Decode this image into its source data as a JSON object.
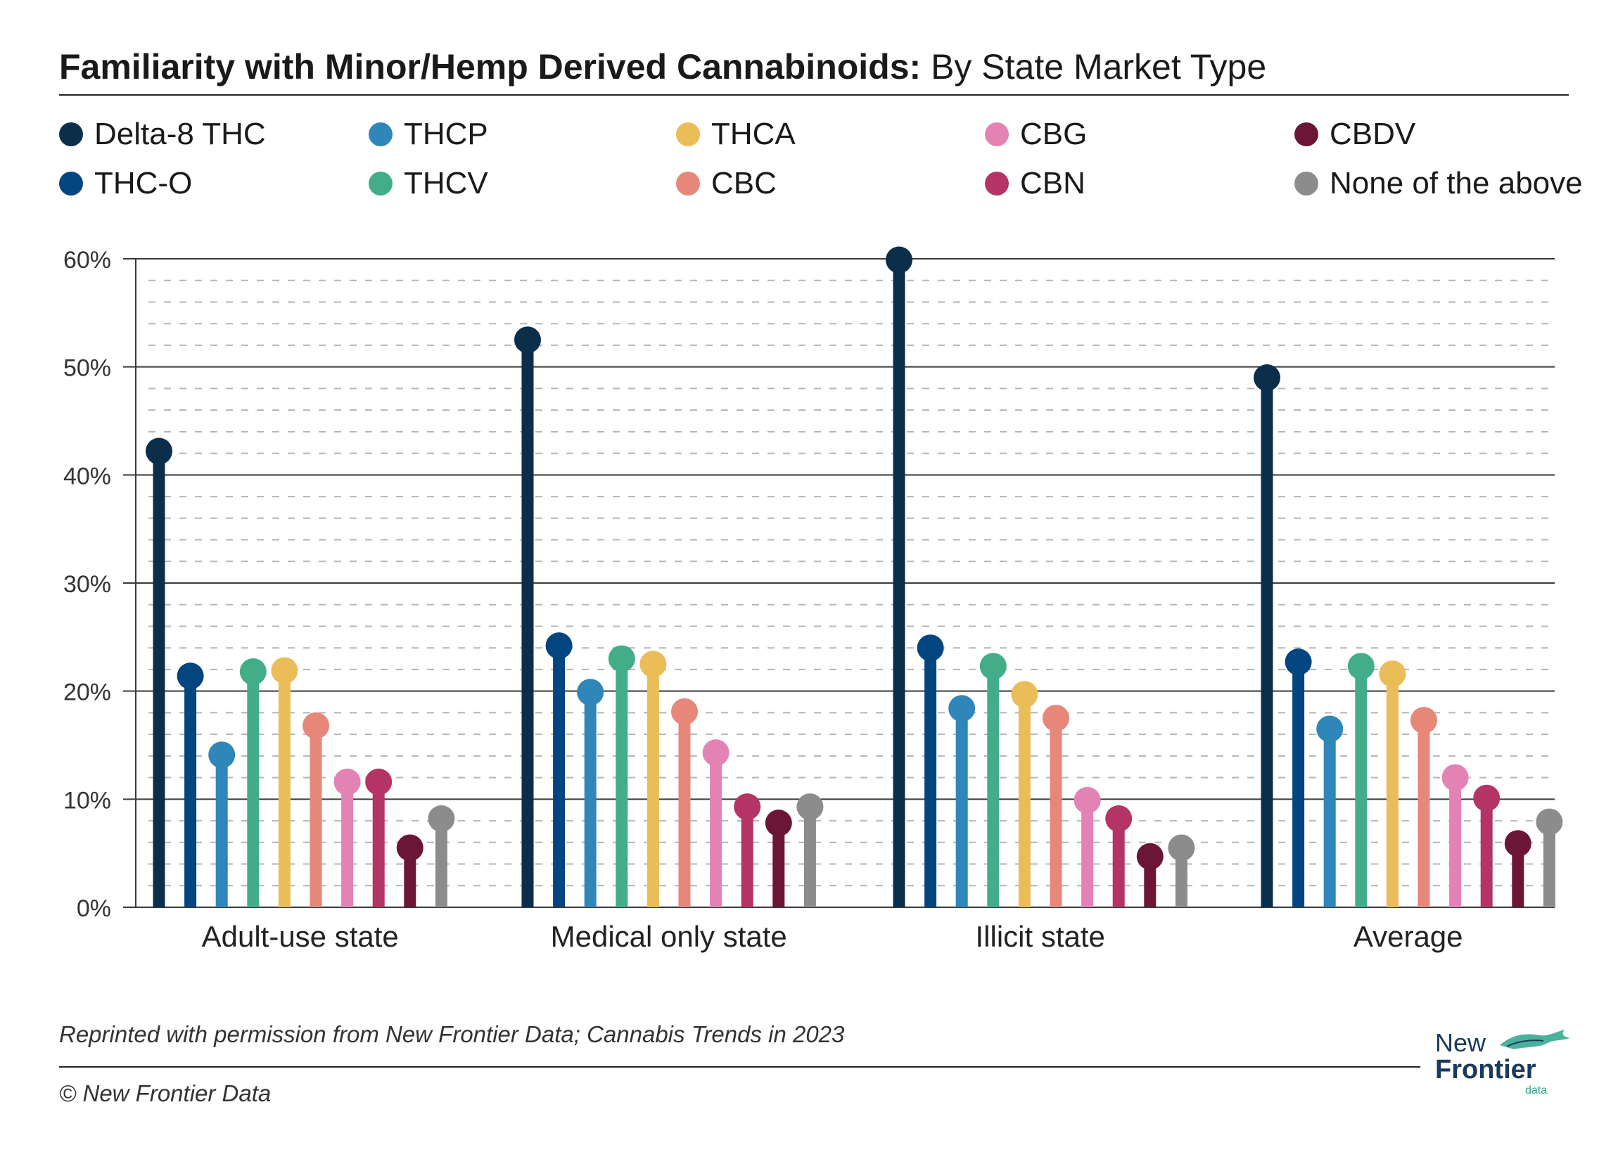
{
  "title": {
    "bold": "Familiarity with Minor/Hemp Derived Cannabinoids:",
    "regular": " By State Market Type"
  },
  "footnote": "Reprinted with permission from New Frontier Data; Cannabis Trends in 2023",
  "copyright": "© New Frontier Data",
  "logo": {
    "line1": "New",
    "line2": "Frontier",
    "line3": "data"
  },
  "chart_data": {
    "type": "lollipop",
    "title": "Familiarity with Minor/Hemp Derived Cannabinoids: By State Market Type",
    "xlabel": "",
    "ylabel": "",
    "ylim": [
      0,
      60
    ],
    "yticks": [
      "0%",
      "10%",
      "20%",
      "30%",
      "40%",
      "50%",
      "60%"
    ],
    "grid": "on",
    "legend_placement": "top",
    "categories": [
      "Adult-use state",
      "Medical only state",
      "Illicit state",
      "Average"
    ],
    "series": [
      {
        "name": "Delta-8 THC",
        "color": "#0b2e4a",
        "values": [
          42.2,
          52.5,
          59.9,
          49.0
        ]
      },
      {
        "name": "THC-O",
        "color": "#03457f",
        "values": [
          21.4,
          24.2,
          24.0,
          22.7
        ]
      },
      {
        "name": "THCP",
        "color": "#2f86b8",
        "values": [
          14.1,
          19.9,
          18.4,
          16.5
        ]
      },
      {
        "name": "THCV",
        "color": "#43ad88",
        "values": [
          21.8,
          23.0,
          22.3,
          22.3
        ]
      },
      {
        "name": "THCA",
        "color": "#ebbd58",
        "values": [
          21.9,
          22.5,
          19.7,
          21.6
        ]
      },
      {
        "name": "CBC",
        "color": "#e7877a",
        "values": [
          16.8,
          18.1,
          17.5,
          17.3
        ]
      },
      {
        "name": "CBG",
        "color": "#e383b4",
        "values": [
          11.6,
          14.3,
          9.9,
          12.0
        ]
      },
      {
        "name": "CBN",
        "color": "#b43466",
        "values": [
          11.6,
          9.3,
          8.2,
          10.1
        ]
      },
      {
        "name": "CBDV",
        "color": "#6b1537",
        "values": [
          5.5,
          7.8,
          4.7,
          5.9
        ]
      },
      {
        "name": "None of the above",
        "color": "#8c8c8c",
        "values": [
          8.2,
          9.3,
          5.5,
          7.9
        ]
      }
    ]
  }
}
